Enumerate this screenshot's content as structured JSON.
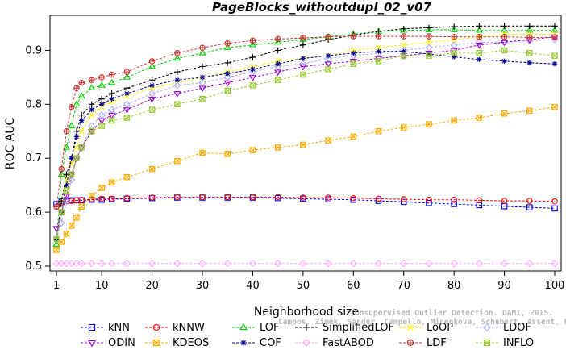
{
  "chart_data": {
    "type": "line",
    "title": "PageBlocks_withoutdupl_02_v07",
    "xlabel": "Neighborhood size",
    "ylabel": "ROC AUC",
    "xlim": [
      1,
      100
    ],
    "ylim": [
      0.5,
      0.95
    ],
    "xticks": [
      1,
      10,
      20,
      30,
      40,
      50,
      60,
      70,
      80,
      90,
      100
    ],
    "yticks": [
      0.5,
      0.6,
      0.7,
      0.8,
      0.9
    ],
    "ytick_labels": [
      "0.5",
      "0.6",
      "0.7",
      "0.8",
      "0.9"
    ],
    "grid": false,
    "legend_position": "bottom",
    "x": [
      1,
      2,
      3,
      4,
      5,
      6,
      8,
      10,
      12,
      15,
      20,
      25,
      30,
      35,
      40,
      45,
      50,
      55,
      60,
      65,
      70,
      75,
      80,
      85,
      90,
      95,
      100
    ],
    "series": [
      {
        "name": "kNN",
        "color": "#0000ff",
        "marker": "square",
        "values": [
          0.615,
          0.62,
          0.621,
          0.622,
          0.622,
          0.622,
          0.623,
          0.623,
          0.624,
          0.625,
          0.626,
          0.627,
          0.627,
          0.627,
          0.627,
          0.626,
          0.625,
          0.624,
          0.623,
          0.621,
          0.619,
          0.617,
          0.615,
          0.613,
          0.611,
          0.609,
          0.607
        ]
      },
      {
        "name": "kNNW",
        "color": "#ff0000",
        "marker": "circle",
        "values": [
          0.61,
          0.617,
          0.62,
          0.621,
          0.622,
          0.623,
          0.624,
          0.625,
          0.625,
          0.626,
          0.627,
          0.628,
          0.628,
          0.628,
          0.628,
          0.628,
          0.627,
          0.627,
          0.626,
          0.625,
          0.624,
          0.623,
          0.623,
          0.622,
          0.621,
          0.621,
          0.62
        ]
      },
      {
        "name": "LOF",
        "color": "#00cc00",
        "marker": "triangle",
        "values": [
          0.54,
          0.67,
          0.72,
          0.76,
          0.8,
          0.815,
          0.83,
          0.835,
          0.84,
          0.85,
          0.87,
          0.885,
          0.895,
          0.905,
          0.91,
          0.915,
          0.92,
          0.925,
          0.93,
          0.935,
          0.937,
          0.938,
          0.938,
          0.937,
          0.937,
          0.937,
          0.937
        ]
      },
      {
        "name": "SimplifiedLOF",
        "color": "#000000",
        "marker": "plus",
        "values": [
          0.55,
          0.62,
          0.67,
          0.7,
          0.75,
          0.78,
          0.8,
          0.81,
          0.82,
          0.83,
          0.845,
          0.86,
          0.87,
          0.877,
          0.887,
          0.9,
          0.91,
          0.92,
          0.928,
          0.935,
          0.94,
          0.942,
          0.944,
          0.945,
          0.945,
          0.945,
          0.945
        ]
      },
      {
        "name": "LoOP",
        "color": "#ffee00",
        "marker": "x",
        "values": [
          0.55,
          0.6,
          0.66,
          0.69,
          0.72,
          0.75,
          0.78,
          0.795,
          0.805,
          0.815,
          0.83,
          0.84,
          0.85,
          0.86,
          0.87,
          0.88,
          0.885,
          0.89,
          0.9,
          0.905,
          0.91,
          0.915,
          0.92,
          0.925,
          0.93,
          0.93,
          0.93
        ]
      },
      {
        "name": "LDOF",
        "color": "#aaaaff",
        "marker": "diamond",
        "values": [
          0.55,
          0.58,
          0.62,
          0.66,
          0.7,
          0.72,
          0.76,
          0.78,
          0.79,
          0.8,
          0.82,
          0.835,
          0.84,
          0.85,
          0.86,
          0.87,
          0.875,
          0.885,
          0.89,
          0.895,
          0.9,
          0.905,
          0.91,
          0.915,
          0.915,
          0.918,
          0.92
        ]
      },
      {
        "name": "ODIN",
        "color": "#9900cc",
        "marker": "triangle-down",
        "values": [
          0.57,
          0.6,
          0.63,
          0.67,
          0.7,
          0.72,
          0.75,
          0.77,
          0.78,
          0.79,
          0.81,
          0.82,
          0.83,
          0.84,
          0.85,
          0.86,
          0.87,
          0.875,
          0.88,
          0.885,
          0.89,
          0.895,
          0.9,
          0.91,
          0.915,
          0.92,
          0.925
        ]
      },
      {
        "name": "KDEOS",
        "color": "#ffaa00",
        "marker": "boxx",
        "values": [
          0.53,
          0.545,
          0.56,
          0.575,
          0.59,
          0.61,
          0.63,
          0.645,
          0.655,
          0.665,
          0.68,
          0.695,
          0.71,
          0.708,
          0.715,
          0.72,
          0.725,
          0.733,
          0.74,
          0.75,
          0.757,
          0.763,
          0.77,
          0.775,
          0.783,
          0.788,
          0.795
        ]
      },
      {
        "name": "COF",
        "color": "#000088",
        "marker": "star",
        "values": [
          0.55,
          0.6,
          0.65,
          0.7,
          0.74,
          0.77,
          0.79,
          0.8,
          0.81,
          0.82,
          0.835,
          0.845,
          0.85,
          0.857,
          0.865,
          0.875,
          0.885,
          0.89,
          0.895,
          0.898,
          0.898,
          0.893,
          0.888,
          0.883,
          0.88,
          0.877,
          0.875
        ]
      },
      {
        "name": "FastABOD",
        "color": "#ffaaff",
        "marker": "diamond",
        "values": [
          0.505,
          0.505,
          0.505,
          0.505,
          0.505,
          0.505,
          0.505,
          0.505,
          0.505,
          0.505,
          0.505,
          0.505,
          0.505,
          0.505,
          0.505,
          0.505,
          0.505,
          0.505,
          0.505,
          0.505,
          0.505,
          0.505,
          0.505,
          0.505,
          0.505,
          0.505,
          0.505
        ]
      },
      {
        "name": "LDF",
        "color": "#cc3333",
        "marker": "circleplus",
        "values": [
          0.61,
          0.68,
          0.75,
          0.795,
          0.83,
          0.84,
          0.845,
          0.85,
          0.855,
          0.86,
          0.88,
          0.895,
          0.905,
          0.913,
          0.918,
          0.921,
          0.923,
          0.925,
          0.926,
          0.926,
          0.926,
          0.926,
          0.925,
          0.925,
          0.925,
          0.924,
          0.924
        ]
      },
      {
        "name": "INFLO",
        "color": "#99cc33",
        "marker": "boxx",
        "values": [
          0.55,
          0.6,
          0.64,
          0.67,
          0.7,
          0.72,
          0.75,
          0.76,
          0.77,
          0.775,
          0.79,
          0.8,
          0.81,
          0.825,
          0.835,
          0.845,
          0.855,
          0.865,
          0.875,
          0.88,
          0.89,
          0.89,
          0.895,
          0.895,
          0.9,
          0.895,
          0.89
        ]
      }
    ]
  },
  "watermark": {
    "line1": "Unsupervised Outlier Detection. DAMI, 2015.",
    "line2": "Campos, Zimek, Sander, Campello, Micenkova, Schubert, Assent, Houle"
  }
}
